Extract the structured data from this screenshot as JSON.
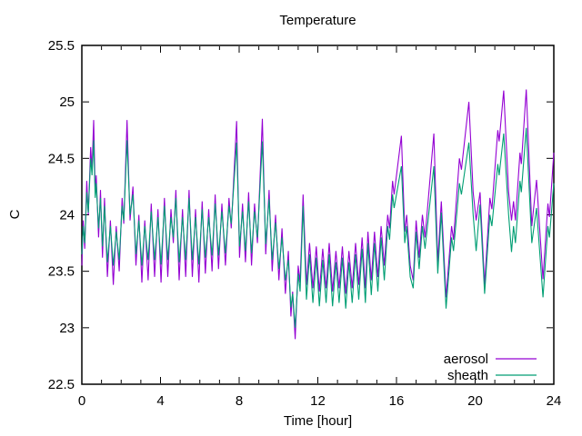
{
  "chart": {
    "title": "Temperature",
    "xlabel": "Time [hour]",
    "ylabel": "C"
  },
  "chart_data": {
    "type": "line",
    "title": "Temperature",
    "xlabel": "Time [hour]",
    "ylabel": "C",
    "xlim": [
      0,
      24
    ],
    "ylim": [
      22.5,
      25.5
    ],
    "grid": false,
    "legend_position": "inside-bottom-right",
    "x_major_ticks": [
      0,
      4,
      8,
      12,
      16,
      20,
      24
    ],
    "x_tick_labels": [
      "0",
      "4",
      "8",
      "12",
      "16",
      "20",
      "24"
    ],
    "x_minor_step": 1,
    "y_major_ticks": [
      22.5,
      23,
      23.5,
      24,
      24.5,
      25,
      25.5
    ],
    "y_tick_labels": [
      "22.5",
      "23",
      "23.5",
      "24",
      "24.5",
      "25",
      "25.5"
    ],
    "axis_color": "#000000",
    "series": [
      {
        "name": "aerosol",
        "color": "#9400d3",
        "points": [
          [
            0,
            23.55
          ],
          [
            0.07,
            23.95
          ],
          [
            0.15,
            23.7
          ],
          [
            0.25,
            24.3
          ],
          [
            0.33,
            24
          ],
          [
            0.45,
            24.6
          ],
          [
            0.52,
            24.4
          ],
          [
            0.6,
            24.84
          ],
          [
            0.68,
            24.2
          ],
          [
            0.73,
            24.35
          ],
          [
            0.85,
            23.8
          ],
          [
            0.95,
            24.22
          ],
          [
            1.05,
            23.62
          ],
          [
            1.15,
            24.15
          ],
          [
            1.3,
            23.45
          ],
          [
            1.45,
            23.95
          ],
          [
            1.6,
            23.38
          ],
          [
            1.75,
            23.9
          ],
          [
            1.9,
            23.5
          ],
          [
            2.05,
            24.15
          ],
          [
            2.13,
            23.92
          ],
          [
            2.3,
            24.84
          ],
          [
            2.45,
            23.95
          ],
          [
            2.6,
            24.25
          ],
          [
            2.75,
            23.55
          ],
          [
            2.9,
            24
          ],
          [
            3.05,
            23.4
          ],
          [
            3.2,
            23.95
          ],
          [
            3.37,
            23.42
          ],
          [
            3.53,
            24.1
          ],
          [
            3.7,
            23.45
          ],
          [
            3.87,
            24.05
          ],
          [
            4.03,
            23.4
          ],
          [
            4.2,
            24.15
          ],
          [
            4.37,
            23.45
          ],
          [
            4.53,
            24.05
          ],
          [
            4.65,
            23.75
          ],
          [
            4.78,
            24.22
          ],
          [
            4.95,
            23.42
          ],
          [
            5.12,
            24.05
          ],
          [
            5.28,
            23.45
          ],
          [
            5.45,
            24.22
          ],
          [
            5.62,
            23.45
          ],
          [
            5.78,
            24.05
          ],
          [
            5.95,
            23.4
          ],
          [
            6.12,
            24.12
          ],
          [
            6.28,
            23.48
          ],
          [
            6.45,
            24.05
          ],
          [
            6.62,
            23.5
          ],
          [
            6.78,
            24.18
          ],
          [
            6.95,
            23.52
          ],
          [
            7.12,
            24.1
          ],
          [
            7.3,
            23.55
          ],
          [
            7.48,
            24.15
          ],
          [
            7.6,
            23.88
          ],
          [
            7.87,
            24.83
          ],
          [
            8.02,
            23.62
          ],
          [
            8.17,
            24.1
          ],
          [
            8.32,
            23.58
          ],
          [
            8.48,
            24.2
          ],
          [
            8.63,
            23.55
          ],
          [
            8.78,
            24.1
          ],
          [
            8.93,
            23.75
          ],
          [
            9.18,
            24.85
          ],
          [
            9.35,
            23.65
          ],
          [
            9.52,
            24.22
          ],
          [
            9.68,
            23.5
          ],
          [
            9.85,
            24
          ],
          [
            10.02,
            23.42
          ],
          [
            10.18,
            23.88
          ],
          [
            10.35,
            23.3
          ],
          [
            10.5,
            23.68
          ],
          [
            10.63,
            23.1
          ],
          [
            10.72,
            23.32
          ],
          [
            10.85,
            22.9
          ],
          [
            11,
            23.55
          ],
          [
            11.1,
            23.4
          ],
          [
            11.25,
            24.18
          ],
          [
            11.42,
            23.38
          ],
          [
            11.58,
            23.75
          ],
          [
            11.75,
            23.35
          ],
          [
            11.92,
            23.72
          ],
          [
            12.08,
            23.32
          ],
          [
            12.25,
            23.7
          ],
          [
            12.42,
            23.35
          ],
          [
            12.58,
            23.75
          ],
          [
            12.75,
            23.32
          ],
          [
            12.92,
            23.68
          ],
          [
            13.08,
            23.35
          ],
          [
            13.25,
            23.72
          ],
          [
            13.42,
            23.3
          ],
          [
            13.58,
            23.68
          ],
          [
            13.75,
            23.35
          ],
          [
            13.92,
            23.75
          ],
          [
            14.08,
            23.38
          ],
          [
            14.25,
            23.8
          ],
          [
            14.42,
            23.35
          ],
          [
            14.55,
            23.85
          ],
          [
            14.72,
            23.42
          ],
          [
            14.88,
            23.85
          ],
          [
            15.05,
            23.45
          ],
          [
            15.22,
            23.9
          ],
          [
            15.38,
            23.55
          ],
          [
            15.55,
            24
          ],
          [
            15.65,
            23.88
          ],
          [
            15.8,
            24.3
          ],
          [
            15.88,
            24.18
          ],
          [
            16.25,
            24.7
          ],
          [
            16.42,
            23.85
          ],
          [
            16.52,
            24
          ],
          [
            16.7,
            23.55
          ],
          [
            16.85,
            23.42
          ],
          [
            17,
            23.95
          ],
          [
            17.15,
            23.62
          ],
          [
            17.32,
            24
          ],
          [
            17.45,
            23.8
          ],
          [
            17.9,
            24.72
          ],
          [
            18.1,
            23.58
          ],
          [
            18.28,
            24.12
          ],
          [
            18.52,
            23.27
          ],
          [
            18.8,
            23.9
          ],
          [
            18.9,
            23.78
          ],
          [
            19.2,
            24.5
          ],
          [
            19.3,
            24.4
          ],
          [
            19.68,
            25
          ],
          [
            19.9,
            24.2
          ],
          [
            20.05,
            23.95
          ],
          [
            20.25,
            24.2
          ],
          [
            20.48,
            23.38
          ],
          [
            20.75,
            24.15
          ],
          [
            20.85,
            24.05
          ],
          [
            21.15,
            24.75
          ],
          [
            21.22,
            24.65
          ],
          [
            21.45,
            25.1
          ],
          [
            21.7,
            24.2
          ],
          [
            21.85,
            23.95
          ],
          [
            21.95,
            24.12
          ],
          [
            22.05,
            23.95
          ],
          [
            22.28,
            24.55
          ],
          [
            22.35,
            24.45
          ],
          [
            22.6,
            25.11
          ],
          [
            22.88,
            23.9
          ],
          [
            23.12,
            24.31
          ],
          [
            23.45,
            23.43
          ],
          [
            23.7,
            24.1
          ],
          [
            23.78,
            23.98
          ],
          [
            24,
            24.55
          ]
        ]
      },
      {
        "name": "sheath",
        "color": "#009e73",
        "points": [
          [
            0,
            23.65
          ],
          [
            0.07,
            23.9
          ],
          [
            0.15,
            23.75
          ],
          [
            0.25,
            24.2
          ],
          [
            0.33,
            24.02
          ],
          [
            0.45,
            24.5
          ],
          [
            0.52,
            24.35
          ],
          [
            0.6,
            24.66
          ],
          [
            0.68,
            24.15
          ],
          [
            0.73,
            24.28
          ],
          [
            0.85,
            23.88
          ],
          [
            0.95,
            24.15
          ],
          [
            1.05,
            23.72
          ],
          [
            1.15,
            24.08
          ],
          [
            1.3,
            23.58
          ],
          [
            1.45,
            23.9
          ],
          [
            1.6,
            23.55
          ],
          [
            1.75,
            23.85
          ],
          [
            1.9,
            23.6
          ],
          [
            2.05,
            24.08
          ],
          [
            2.13,
            23.95
          ],
          [
            2.3,
            24.66
          ],
          [
            2.45,
            24
          ],
          [
            2.6,
            24.18
          ],
          [
            2.75,
            23.65
          ],
          [
            2.9,
            23.95
          ],
          [
            3.05,
            23.55
          ],
          [
            3.2,
            23.9
          ],
          [
            3.37,
            23.6
          ],
          [
            3.53,
            24.03
          ],
          [
            3.7,
            23.6
          ],
          [
            3.87,
            23.98
          ],
          [
            4.03,
            23.56
          ],
          [
            4.2,
            24.08
          ],
          [
            4.37,
            23.6
          ],
          [
            4.53,
            23.98
          ],
          [
            4.65,
            23.8
          ],
          [
            4.78,
            24.15
          ],
          [
            4.95,
            23.58
          ],
          [
            5.12,
            23.98
          ],
          [
            5.28,
            23.6
          ],
          [
            5.45,
            24.15
          ],
          [
            5.62,
            23.6
          ],
          [
            5.78,
            23.98
          ],
          [
            5.95,
            23.56
          ],
          [
            6.12,
            24.05
          ],
          [
            6.28,
            23.62
          ],
          [
            6.45,
            23.98
          ],
          [
            6.62,
            23.64
          ],
          [
            6.78,
            24.1
          ],
          [
            6.95,
            23.64
          ],
          [
            7.12,
            24.03
          ],
          [
            7.3,
            23.66
          ],
          [
            7.48,
            24.08
          ],
          [
            7.6,
            23.92
          ],
          [
            7.87,
            24.64
          ],
          [
            8.02,
            23.72
          ],
          [
            8.17,
            24.03
          ],
          [
            8.32,
            23.68
          ],
          [
            8.48,
            24.12
          ],
          [
            8.63,
            23.66
          ],
          [
            8.78,
            24.03
          ],
          [
            8.93,
            23.8
          ],
          [
            9.18,
            24.65
          ],
          [
            9.35,
            23.74
          ],
          [
            9.52,
            24.14
          ],
          [
            9.68,
            23.6
          ],
          [
            9.85,
            23.93
          ],
          [
            10.02,
            23.52
          ],
          [
            10.18,
            23.8
          ],
          [
            10.35,
            23.42
          ],
          [
            10.5,
            23.6
          ],
          [
            10.63,
            23.18
          ],
          [
            10.72,
            23.3
          ],
          [
            10.85,
            23
          ],
          [
            11,
            23.48
          ],
          [
            11.1,
            23.32
          ],
          [
            11.25,
            24.08
          ],
          [
            11.42,
            23.25
          ],
          [
            11.58,
            23.65
          ],
          [
            11.75,
            23.22
          ],
          [
            11.92,
            23.62
          ],
          [
            12.08,
            23.19
          ],
          [
            12.25,
            23.6
          ],
          [
            12.42,
            23.22
          ],
          [
            12.58,
            23.65
          ],
          [
            12.75,
            23.19
          ],
          [
            12.92,
            23.58
          ],
          [
            13.08,
            23.22
          ],
          [
            13.25,
            23.62
          ],
          [
            13.42,
            23.17
          ],
          [
            13.58,
            23.58
          ],
          [
            13.75,
            23.22
          ],
          [
            13.92,
            23.65
          ],
          [
            14.08,
            23.25
          ],
          [
            14.25,
            23.7
          ],
          [
            14.42,
            23.22
          ],
          [
            14.55,
            23.75
          ],
          [
            14.72,
            23.29
          ],
          [
            14.88,
            23.75
          ],
          [
            15.05,
            23.32
          ],
          [
            15.22,
            23.8
          ],
          [
            15.38,
            23.42
          ],
          [
            15.55,
            23.9
          ],
          [
            15.65,
            23.78
          ],
          [
            15.8,
            24.18
          ],
          [
            15.88,
            24.06
          ],
          [
            16.25,
            24.43
          ],
          [
            16.42,
            23.75
          ],
          [
            16.52,
            23.9
          ],
          [
            16.7,
            23.45
          ],
          [
            16.85,
            23.35
          ],
          [
            17,
            23.85
          ],
          [
            17.15,
            23.52
          ],
          [
            17.32,
            23.9
          ],
          [
            17.45,
            23.7
          ],
          [
            17.9,
            24.43
          ],
          [
            18.1,
            23.48
          ],
          [
            18.28,
            24.02
          ],
          [
            18.52,
            23.17
          ],
          [
            18.8,
            23.8
          ],
          [
            18.9,
            23.68
          ],
          [
            19.2,
            24.28
          ],
          [
            19.3,
            24.18
          ],
          [
            19.68,
            24.64
          ],
          [
            19.9,
            24
          ],
          [
            20.05,
            23.68
          ],
          [
            20.25,
            24.09
          ],
          [
            20.48,
            23.3
          ],
          [
            20.75,
            24
          ],
          [
            20.85,
            23.9
          ],
          [
            21.15,
            24.45
          ],
          [
            21.22,
            24.35
          ],
          [
            21.45,
            24.72
          ],
          [
            21.7,
            24
          ],
          [
            21.85,
            23.67
          ],
          [
            21.95,
            23.9
          ],
          [
            22.05,
            23.75
          ],
          [
            22.28,
            24.3
          ],
          [
            22.35,
            24.2
          ],
          [
            22.6,
            24.77
          ],
          [
            22.88,
            23.75
          ],
          [
            23.12,
            24.06
          ],
          [
            23.45,
            23.27
          ],
          [
            23.7,
            23.9
          ],
          [
            23.78,
            23.8
          ],
          [
            24,
            24.28
          ]
        ]
      }
    ]
  }
}
